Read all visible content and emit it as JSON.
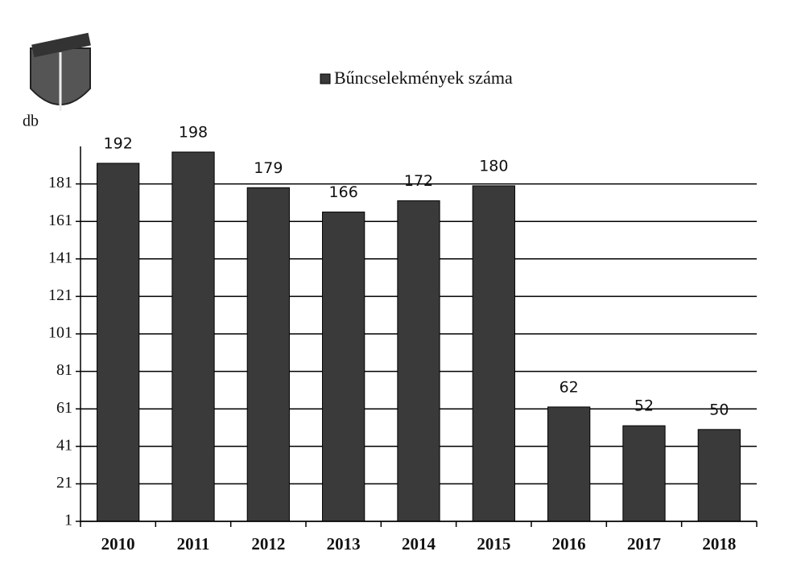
{
  "chart_data": {
    "type": "bar",
    "legend": "Bűncselekmények száma",
    "y_label": "db",
    "categories": [
      "2010",
      "2011",
      "2012",
      "2013",
      "2014",
      "2015",
      "2016",
      "2017",
      "2018"
    ],
    "values": [
      192,
      198,
      179,
      166,
      172,
      180,
      62,
      52,
      50
    ],
    "color": "#3a3a3a",
    "ylim": [
      1,
      201
    ],
    "yticks": [
      1,
      21,
      41,
      61,
      81,
      101,
      121,
      141,
      161,
      181
    ],
    "grid": true
  }
}
